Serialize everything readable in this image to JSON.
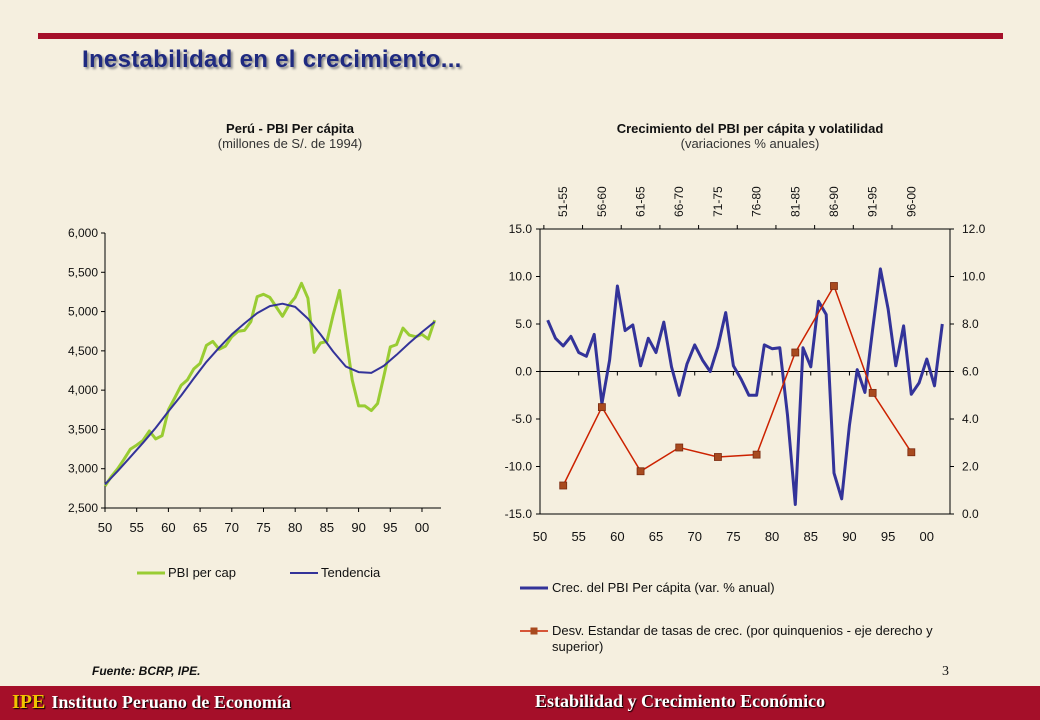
{
  "title": "Inestabilidad en el crecimiento...",
  "source": "Fuente: BCRP, IPE.",
  "page_number": "3",
  "footer": {
    "ipe": "IPE",
    "institute": "Instituto Peruano de Economía",
    "presentation": "Estabilidad y Crecimiento Económico"
  },
  "colors": {
    "accent": "#a50f29",
    "title": "#1f2a80",
    "green": "#99cc33",
    "navy": "#333399",
    "red": "#cc2200",
    "background": "#f5efdf"
  },
  "chart_data": [
    {
      "type": "line",
      "title": "Perú - PBI Per cápita",
      "subtitle": "(millones de S/. de 1994)",
      "x_ticks": [
        "50",
        "55",
        "60",
        "65",
        "70",
        "75",
        "80",
        "85",
        "90",
        "95",
        "00"
      ],
      "y_ticks": [
        "2,500",
        "3,000",
        "3,500",
        "4,000",
        "4,500",
        "5,000",
        "5,500",
        "6,000"
      ],
      "xlim": [
        1950,
        2003
      ],
      "ylim": [
        2500,
        6000
      ],
      "series": [
        {
          "name": "PBI per cap",
          "color": "#99cc33",
          "x": [
            1950,
            1951,
            1952,
            1953,
            1954,
            1955,
            1956,
            1957,
            1958,
            1959,
            1960,
            1961,
            1962,
            1963,
            1964,
            1965,
            1966,
            1967,
            1968,
            1969,
            1970,
            1971,
            1972,
            1973,
            1974,
            1975,
            1976,
            1977,
            1978,
            1979,
            1980,
            1981,
            1982,
            1983,
            1984,
            1985,
            1986,
            1987,
            1988,
            1989,
            1990,
            1991,
            1992,
            1993,
            1994,
            1995,
            1996,
            1997,
            1998,
            1999,
            2000,
            2001,
            2002
          ],
          "values": [
            2780,
            2900,
            3000,
            3120,
            3250,
            3300,
            3360,
            3480,
            3380,
            3420,
            3750,
            3900,
            4060,
            4130,
            4270,
            4340,
            4570,
            4620,
            4520,
            4560,
            4680,
            4750,
            4760,
            4870,
            5190,
            5220,
            5180,
            5060,
            4940,
            5080,
            5180,
            5360,
            5170,
            4480,
            4600,
            4620,
            4960,
            5270,
            4680,
            4130,
            3800,
            3800,
            3740,
            3830,
            4180,
            4550,
            4580,
            4790,
            4700,
            4680,
            4710,
            4650,
            4890
          ]
        },
        {
          "name": "Tendencia",
          "color": "#333399",
          "x": [
            1950,
            1952,
            1954,
            1956,
            1958,
            1960,
            1962,
            1964,
            1966,
            1968,
            1970,
            1972,
            1974,
            1976,
            1978,
            1980,
            1982,
            1984,
            1986,
            1988,
            1990,
            1992,
            1994,
            1996,
            1998,
            2000,
            2002
          ],
          "values": [
            2800,
            2970,
            3150,
            3330,
            3520,
            3730,
            3930,
            4150,
            4360,
            4540,
            4710,
            4850,
            4980,
            5070,
            5100,
            5060,
            4910,
            4710,
            4490,
            4300,
            4230,
            4220,
            4310,
            4450,
            4600,
            4740,
            4870
          ]
        }
      ]
    },
    {
      "type": "line",
      "title": "Crecimiento del PBI per cápita y volatilidad",
      "subtitle": "(variaciones % anuales)",
      "x_ticks": [
        "50",
        "55",
        "60",
        "65",
        "70",
        "75",
        "80",
        "85",
        "90",
        "95",
        "00"
      ],
      "top_ticks": [
        "51-55",
        "56-60",
        "61-65",
        "66-70",
        "71-75",
        "76-80",
        "81-85",
        "86-90",
        "91-95",
        "96-00"
      ],
      "y_ticks_left": [
        "15.0",
        "10.0",
        "5.0",
        "0.0",
        "-5.0",
        "-10.0",
        "-15.0"
      ],
      "y_ticks_right": [
        "12.0",
        "10.0",
        "8.0",
        "6.0",
        "4.0",
        "2.0",
        "0.0"
      ],
      "xlim": [
        1950,
        2003
      ],
      "ylim_left": [
        -15,
        15
      ],
      "ylim_right": [
        0,
        12
      ],
      "series": [
        {
          "name": "Crec. del PBI Per cápita (var. % anual)",
          "axis": "left",
          "color": "#333399",
          "x": [
            1951,
            1952,
            1953,
            1954,
            1955,
            1956,
            1957,
            1958,
            1959,
            1960,
            1961,
            1962,
            1963,
            1964,
            1965,
            1966,
            1967,
            1968,
            1969,
            1970,
            1971,
            1972,
            1973,
            1974,
            1975,
            1976,
            1977,
            1978,
            1979,
            1980,
            1981,
            1982,
            1983,
            1984,
            1985,
            1986,
            1987,
            1988,
            1989,
            1990,
            1991,
            1992,
            1993,
            1994,
            1995,
            1996,
            1997,
            1998,
            1999,
            2000,
            2001,
            2002
          ],
          "values": [
            5.4,
            3.5,
            2.7,
            3.7,
            2.0,
            1.6,
            3.9,
            -3.4,
            1.2,
            9.0,
            4.3,
            4.9,
            0.6,
            3.5,
            2.0,
            5.2,
            0.5,
            -2.5,
            0.8,
            2.8,
            1.2,
            0.0,
            2.6,
            6.2,
            0.6,
            -0.8,
            -2.5,
            -2.5,
            2.8,
            2.4,
            2.5,
            -4.6,
            -14.0,
            2.5,
            0.5,
            7.4,
            6.0,
            -10.7,
            -13.4,
            -5.7,
            0.2,
            -2.2,
            4.4,
            10.8,
            6.6,
            0.6,
            4.8,
            -2.4,
            -1.2,
            1.3,
            -1.5,
            5.0
          ]
        },
        {
          "name": "Desv. Estandar de tasas de crec. (por quinquenios - eje derecho y superior)",
          "axis": "right",
          "color": "#cc2200",
          "x": [
            1953,
            1958,
            1963,
            1968,
            1973,
            1978,
            1983,
            1988,
            1993,
            1998
          ],
          "values": [
            1.2,
            4.5,
            1.8,
            2.8,
            2.4,
            2.5,
            6.8,
            9.6,
            5.1,
            2.6
          ]
        }
      ]
    }
  ]
}
